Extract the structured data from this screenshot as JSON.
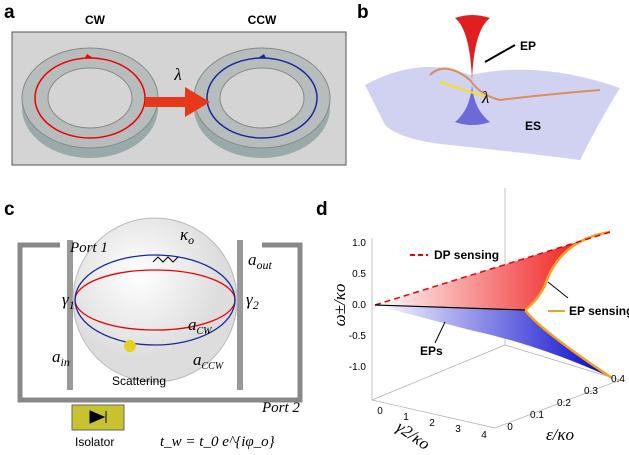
{
  "panel_a": {
    "label": "a",
    "cw": "CW",
    "ccw": "CCW",
    "lambda": "λ"
  },
  "panel_b": {
    "label": "b",
    "ep": "EP",
    "lambda": "λ",
    "es": "ES"
  },
  "panel_c": {
    "label": "c",
    "port1": "Port 1",
    "port2": "Port 2",
    "kappa": {
      "base": "κ",
      "sub": "o"
    },
    "a_out": {
      "base": "a",
      "sub": "out"
    },
    "gamma1": {
      "base": "γ",
      "sub": "1"
    },
    "gamma2": {
      "base": "γ",
      "sub": "2"
    },
    "a_cw": {
      "base": "a",
      "sub": "CW"
    },
    "a_ccw": {
      "base": "a",
      "sub": "CCW"
    },
    "a_in": {
      "base": "a",
      "sub": "in"
    },
    "scattering": "Scattering",
    "isolator": "Isolator",
    "formula": "t_w = t_0 e^{iφ_o}"
  },
  "panel_d": {
    "label": "d",
    "y_label": "ω±/κo",
    "x_label": "γ2/κo",
    "z_label": "ε/κo",
    "yticks": [
      "1.0",
      "0.5",
      "0.0",
      "-0.5",
      "-1.0"
    ],
    "xticks": [
      "0",
      "1",
      "2",
      "3",
      "4"
    ],
    "zticks": [
      "0",
      "0.1",
      "0.2",
      "0.3",
      "0.4"
    ],
    "dp": "DP sensing",
    "ep": "EP sensing",
    "eps": "EPs"
  }
}
